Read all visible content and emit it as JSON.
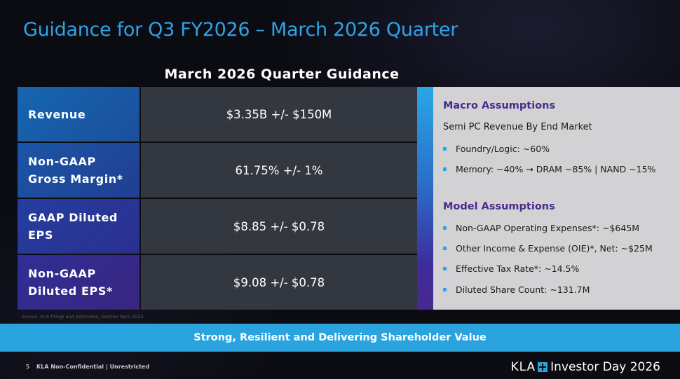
{
  "title": "Guidance for Q3 FY2026 – March 2026 Quarter",
  "table": {
    "heading": "March 2026 Quarter Guidance",
    "rows": [
      {
        "label": "Revenue",
        "value": "$3.35B +/- $150M"
      },
      {
        "label": "Non-GAAP\nGross Margin*",
        "value": "61.75% +/- 1%"
      },
      {
        "label": "GAAP Diluted\nEPS",
        "value": "$8.85 +/- $0.78"
      },
      {
        "label": "Non-GAAP\nDiluted EPS*",
        "value": "$9.08 +/- $0.78"
      }
    ]
  },
  "assumptions": {
    "macro_heading": "Macro Assumptions",
    "macro_subheading": "Semi PC Revenue By End Market",
    "macro_items": [
      "Foundry/Logic: ~60%",
      "Memory: ~40% → DRAM ~85% | NAND ~15%"
    ],
    "model_heading": "Model Assumptions",
    "model_items": [
      "Non-GAAP Operating Expenses*: ~$645M",
      "Other Income & Expense (OIE)*, Net: ~$25M",
      "Effective Tax Rate*: ~14.5%",
      "Diluted Share Count: ~131.7M"
    ]
  },
  "source_note": "Source: KLA filings and estimates, Gartner April 2022",
  "banner": "Strong, Resilient and Delivering Shareholder Value",
  "footer": {
    "page_number": "5",
    "classification": "KLA Non-Confidential | Unrestricted",
    "brand_kla": "KLA",
    "brand_event": "Investor Day 2026"
  },
  "colors": {
    "title": "#2ea3e8",
    "banner": "#2aa3df",
    "assumption_heading": "#4a2a8c",
    "value_cell": "#33373f",
    "assumption_panel": "#d2d2d4"
  },
  "icons": {
    "brand_mark": "plus-icon",
    "list_bullet": "square-bullet-icon"
  }
}
